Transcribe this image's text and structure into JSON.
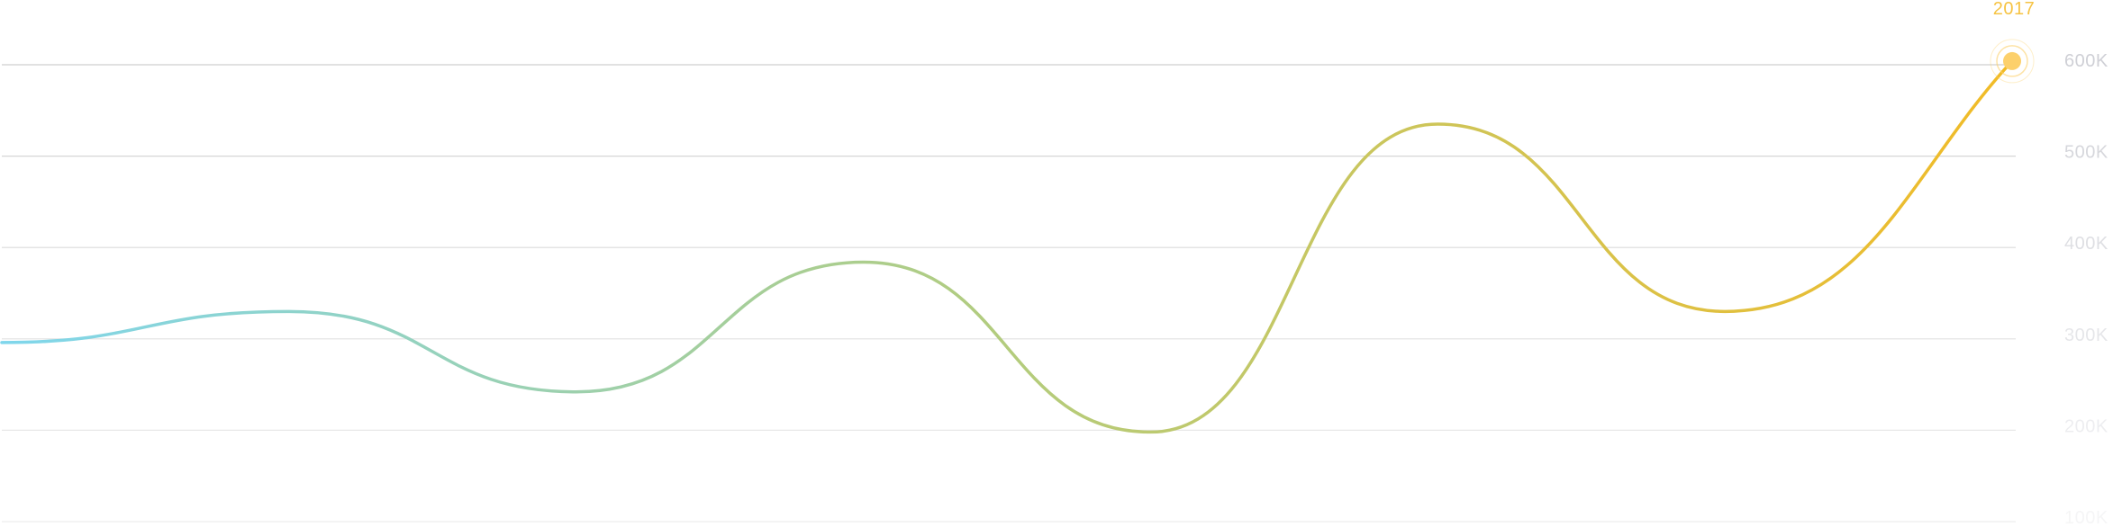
{
  "chart_data": {
    "type": "line",
    "title": "",
    "xlabel": "",
    "ylabel": "",
    "ylim": [
      100000,
      600000
    ],
    "ytick_labels": [
      "600K",
      "500K",
      "400K",
      "300K",
      "200K",
      "100K"
    ],
    "ytick_values": [
      600000,
      500000,
      400000,
      300000,
      200000,
      100000
    ],
    "grid": true,
    "legend": "none",
    "series": [
      {
        "values": [
          296000,
          330000,
          242000,
          384000,
          198000,
          535000,
          330000,
          604000
        ]
      }
    ],
    "highlight": {
      "label": "2017",
      "point_index": 7,
      "color": "#f6c343"
    },
    "colors": {
      "gradient_start": "#7fd6ec",
      "gradient_mid": "#b3cc7d",
      "gradient_end": "#f2bb26",
      "gridline": "#cfcfcf",
      "tick_label": "#cfd0d6",
      "marker": "#fcd06b"
    }
  }
}
